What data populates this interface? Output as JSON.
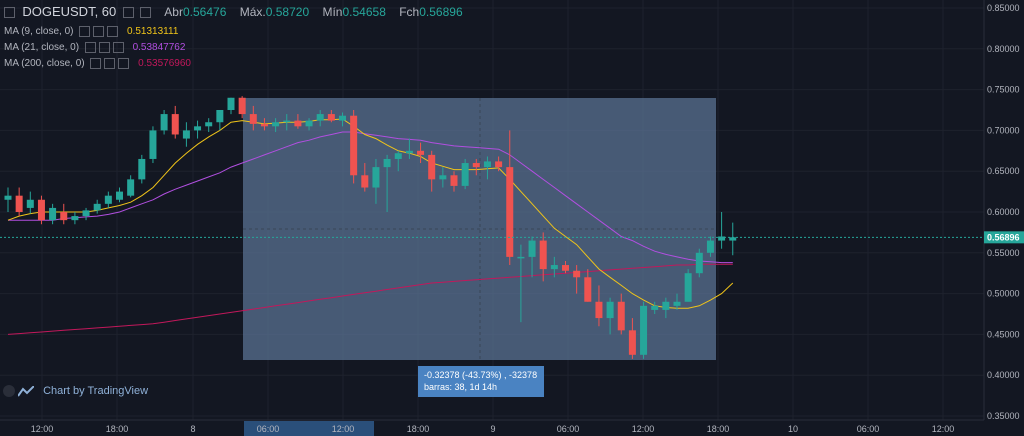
{
  "header": {
    "symbol": "DOGEUSDT, 60",
    "open_label": "Abr",
    "open_value": "0.56476",
    "high_label": "Máx.",
    "high_value": "0.58720",
    "low_label": "Mín",
    "low_value": "0.54658",
    "close_label": "Fch",
    "close_value": "0.56896"
  },
  "indicators": [
    {
      "label": "MA (9, close, 0)",
      "value": "0.51313111",
      "color": "#f0c419"
    },
    {
      "label": "MA (21, close, 0)",
      "value": "0.53847762",
      "color": "#b14fe0"
    },
    {
      "label": "MA (200, close, 0)",
      "value": "0.53576960",
      "color": "#c2185b"
    }
  ],
  "branding": "Chart by TradingView",
  "measure": {
    "line1": "-0.32378 (-43.73%) , -32378",
    "line2": "barras: 38, 1d 14h"
  },
  "price_axis": {
    "ticks": [
      "0.85000",
      "0.80000",
      "0.75000",
      "0.70000",
      "0.65000",
      "0.60000",
      "0.55000",
      "0.50000",
      "0.45000",
      "0.40000",
      "0.35000"
    ],
    "current_price": "0.56896"
  },
  "time_axis": {
    "ticks": [
      "12:00",
      "18:00",
      "8",
      "06:00",
      "12:00",
      "18:00",
      "9",
      "06:00",
      "12:00",
      "18:00",
      "10",
      "06:00",
      "12:00"
    ]
  },
  "colors": {
    "background": "#131722",
    "up": "#26a69a",
    "down": "#ef5350",
    "measure": "#4a83c2"
  },
  "chart_data": {
    "type": "candlestick",
    "ylim": [
      0.35,
      0.86
    ],
    "candles": [
      {
        "o": 0.615,
        "h": 0.63,
        "l": 0.6,
        "c": 0.62
      },
      {
        "o": 0.62,
        "h": 0.63,
        "l": 0.595,
        "c": 0.6
      },
      {
        "o": 0.605,
        "h": 0.625,
        "l": 0.598,
        "c": 0.615
      },
      {
        "o": 0.615,
        "h": 0.62,
        "l": 0.585,
        "c": 0.59
      },
      {
        "o": 0.59,
        "h": 0.61,
        "l": 0.585,
        "c": 0.605
      },
      {
        "o": 0.6,
        "h": 0.61,
        "l": 0.585,
        "c": 0.59
      },
      {
        "o": 0.59,
        "h": 0.6,
        "l": 0.585,
        "c": 0.595
      },
      {
        "o": 0.595,
        "h": 0.605,
        "l": 0.59,
        "c": 0.602
      },
      {
        "o": 0.602,
        "h": 0.615,
        "l": 0.598,
        "c": 0.61
      },
      {
        "o": 0.61,
        "h": 0.625,
        "l": 0.605,
        "c": 0.62
      },
      {
        "o": 0.615,
        "h": 0.63,
        "l": 0.612,
        "c": 0.625
      },
      {
        "o": 0.62,
        "h": 0.645,
        "l": 0.618,
        "c": 0.64
      },
      {
        "o": 0.64,
        "h": 0.67,
        "l": 0.635,
        "c": 0.665
      },
      {
        "o": 0.665,
        "h": 0.705,
        "l": 0.66,
        "c": 0.7
      },
      {
        "o": 0.7,
        "h": 0.725,
        "l": 0.695,
        "c": 0.72
      },
      {
        "o": 0.72,
        "h": 0.73,
        "l": 0.69,
        "c": 0.695
      },
      {
        "o": 0.69,
        "h": 0.71,
        "l": 0.68,
        "c": 0.7
      },
      {
        "o": 0.7,
        "h": 0.712,
        "l": 0.69,
        "c": 0.705
      },
      {
        "o": 0.705,
        "h": 0.715,
        "l": 0.698,
        "c": 0.71
      },
      {
        "o": 0.71,
        "h": 0.725,
        "l": 0.7,
        "c": 0.725
      },
      {
        "o": 0.725,
        "h": 0.74,
        "l": 0.72,
        "c": 0.74
      },
      {
        "o": 0.74,
        "h": 0.742,
        "l": 0.715,
        "c": 0.72
      },
      {
        "o": 0.72,
        "h": 0.73,
        "l": 0.7,
        "c": 0.708
      },
      {
        "o": 0.708,
        "h": 0.715,
        "l": 0.7,
        "c": 0.705
      },
      {
        "o": 0.705,
        "h": 0.715,
        "l": 0.698,
        "c": 0.71
      },
      {
        "o": 0.71,
        "h": 0.72,
        "l": 0.7,
        "c": 0.712
      },
      {
        "o": 0.712,
        "h": 0.72,
        "l": 0.702,
        "c": 0.705
      },
      {
        "o": 0.705,
        "h": 0.715,
        "l": 0.7,
        "c": 0.712
      },
      {
        "o": 0.712,
        "h": 0.725,
        "l": 0.705,
        "c": 0.72
      },
      {
        "o": 0.72,
        "h": 0.725,
        "l": 0.71,
        "c": 0.712
      },
      {
        "o": 0.712,
        "h": 0.722,
        "l": 0.705,
        "c": 0.718
      },
      {
        "o": 0.718,
        "h": 0.725,
        "l": 0.635,
        "c": 0.645
      },
      {
        "o": 0.645,
        "h": 0.66,
        "l": 0.625,
        "c": 0.63
      },
      {
        "o": 0.63,
        "h": 0.665,
        "l": 0.61,
        "c": 0.655
      },
      {
        "o": 0.655,
        "h": 0.67,
        "l": 0.6,
        "c": 0.665
      },
      {
        "o": 0.665,
        "h": 0.675,
        "l": 0.65,
        "c": 0.672
      },
      {
        "o": 0.672,
        "h": 0.69,
        "l": 0.665,
        "c": 0.675
      },
      {
        "o": 0.675,
        "h": 0.685,
        "l": 0.66,
        "c": 0.67
      },
      {
        "o": 0.67,
        "h": 0.675,
        "l": 0.625,
        "c": 0.64
      },
      {
        "o": 0.64,
        "h": 0.655,
        "l": 0.63,
        "c": 0.645
      },
      {
        "o": 0.645,
        "h": 0.65,
        "l": 0.625,
        "c": 0.632
      },
      {
        "o": 0.632,
        "h": 0.665,
        "l": 0.628,
        "c": 0.66
      },
      {
        "o": 0.66,
        "h": 0.665,
        "l": 0.645,
        "c": 0.655
      },
      {
        "o": 0.655,
        "h": 0.668,
        "l": 0.64,
        "c": 0.662
      },
      {
        "o": 0.662,
        "h": 0.668,
        "l": 0.65,
        "c": 0.655
      },
      {
        "o": 0.655,
        "h": 0.7,
        "l": 0.535,
        "c": 0.545
      },
      {
        "o": 0.545,
        "h": 0.56,
        "l": 0.465,
        "c": 0.545
      },
      {
        "o": 0.545,
        "h": 0.57,
        "l": 0.52,
        "c": 0.565
      },
      {
        "o": 0.565,
        "h": 0.575,
        "l": 0.515,
        "c": 0.53
      },
      {
        "o": 0.53,
        "h": 0.545,
        "l": 0.52,
        "c": 0.535
      },
      {
        "o": 0.535,
        "h": 0.54,
        "l": 0.525,
        "c": 0.528
      },
      {
        "o": 0.528,
        "h": 0.535,
        "l": 0.5,
        "c": 0.52
      },
      {
        "o": 0.52,
        "h": 0.53,
        "l": 0.49,
        "c": 0.49
      },
      {
        "o": 0.49,
        "h": 0.51,
        "l": 0.46,
        "c": 0.47
      },
      {
        "o": 0.47,
        "h": 0.495,
        "l": 0.45,
        "c": 0.49
      },
      {
        "o": 0.49,
        "h": 0.5,
        "l": 0.45,
        "c": 0.455
      },
      {
        "o": 0.455,
        "h": 0.47,
        "l": 0.42,
        "c": 0.425
      },
      {
        "o": 0.425,
        "h": 0.49,
        "l": 0.42,
        "c": 0.485
      },
      {
        "o": 0.48,
        "h": 0.49,
        "l": 0.475,
        "c": 0.485
      },
      {
        "o": 0.48,
        "h": 0.495,
        "l": 0.47,
        "c": 0.49
      },
      {
        "o": 0.485,
        "h": 0.5,
        "l": 0.48,
        "c": 0.49
      },
      {
        "o": 0.49,
        "h": 0.53,
        "l": 0.49,
        "c": 0.525
      },
      {
        "o": 0.525,
        "h": 0.555,
        "l": 0.52,
        "c": 0.55
      },
      {
        "o": 0.55,
        "h": 0.57,
        "l": 0.545,
        "c": 0.565
      },
      {
        "o": 0.565,
        "h": 0.6,
        "l": 0.555,
        "c": 0.57
      },
      {
        "o": 0.565,
        "h": 0.587,
        "l": 0.547,
        "c": 0.569
      }
    ],
    "ma9": [
      0.59,
      0.595,
      0.598,
      0.6,
      0.6,
      0.6,
      0.6,
      0.6,
      0.602,
      0.605,
      0.608,
      0.612,
      0.62,
      0.63,
      0.645,
      0.66,
      0.672,
      0.683,
      0.692,
      0.7,
      0.71,
      0.712,
      0.71,
      0.708,
      0.709,
      0.71,
      0.71,
      0.711,
      0.713,
      0.713,
      0.714,
      0.705,
      0.695,
      0.69,
      0.682,
      0.675,
      0.672,
      0.668,
      0.66,
      0.656,
      0.652,
      0.652,
      0.652,
      0.653,
      0.654,
      0.64,
      0.625,
      0.61,
      0.595,
      0.58,
      0.57,
      0.56,
      0.545,
      0.53,
      0.52,
      0.51,
      0.5,
      0.492,
      0.485,
      0.483,
      0.482,
      0.482,
      0.485,
      0.492,
      0.5,
      0.513
    ],
    "ma21": [
      0.59,
      0.59,
      0.59,
      0.59,
      0.59,
      0.592,
      0.593,
      0.594,
      0.595,
      0.597,
      0.6,
      0.605,
      0.61,
      0.615,
      0.622,
      0.628,
      0.633,
      0.638,
      0.643,
      0.648,
      0.655,
      0.66,
      0.665,
      0.67,
      0.675,
      0.68,
      0.685,
      0.688,
      0.692,
      0.695,
      0.698,
      0.698,
      0.696,
      0.694,
      0.692,
      0.69,
      0.689,
      0.688,
      0.685,
      0.683,
      0.681,
      0.68,
      0.679,
      0.678,
      0.677,
      0.67,
      0.66,
      0.65,
      0.64,
      0.63,
      0.62,
      0.61,
      0.6,
      0.59,
      0.58,
      0.57,
      0.565,
      0.558,
      0.552,
      0.548,
      0.545,
      0.542,
      0.54,
      0.539,
      0.538,
      0.538
    ],
    "ma200": [
      0.45,
      0.451,
      0.452,
      0.453,
      0.454,
      0.455,
      0.456,
      0.457,
      0.458,
      0.459,
      0.46,
      0.461,
      0.462,
      0.463,
      0.465,
      0.467,
      0.469,
      0.471,
      0.473,
      0.475,
      0.477,
      0.479,
      0.481,
      0.483,
      0.485,
      0.487,
      0.489,
      0.491,
      0.493,
      0.495,
      0.497,
      0.499,
      0.501,
      0.503,
      0.505,
      0.507,
      0.509,
      0.511,
      0.513,
      0.514,
      0.515,
      0.516,
      0.517,
      0.518,
      0.519,
      0.52,
      0.521,
      0.522,
      0.523,
      0.524,
      0.525,
      0.526,
      0.527,
      0.528,
      0.529,
      0.53,
      0.531,
      0.532,
      0.533,
      0.534,
      0.535,
      0.535,
      0.536,
      0.536,
      0.536,
      0.536
    ]
  }
}
